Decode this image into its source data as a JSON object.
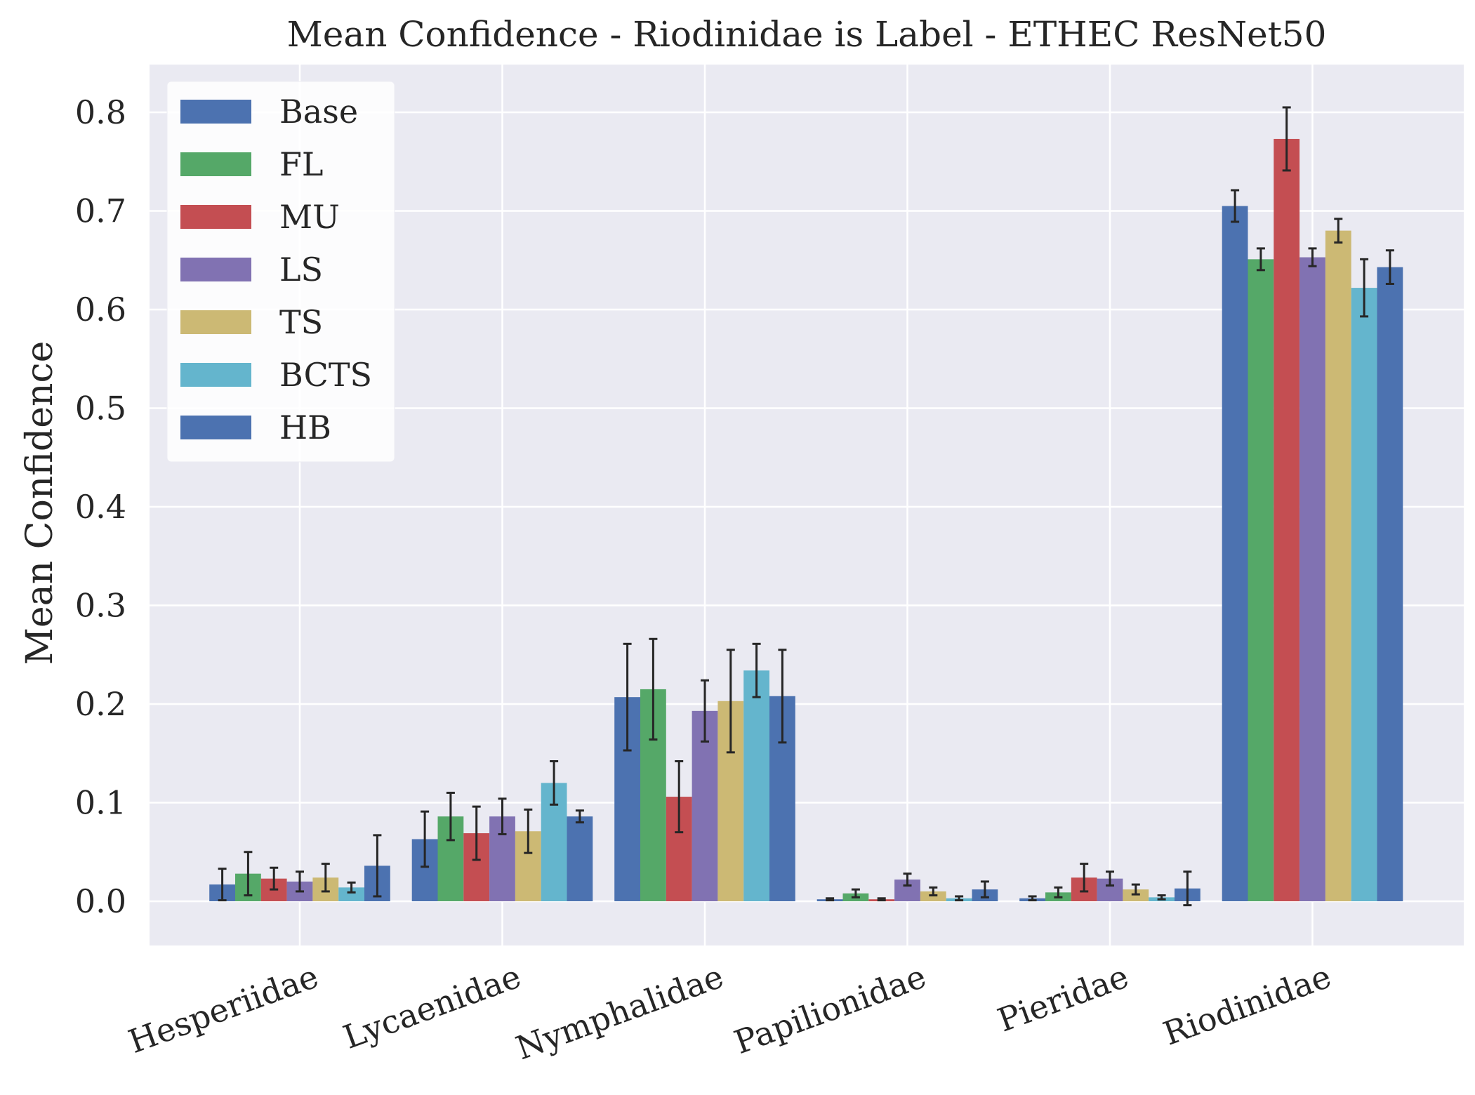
{
  "chart_data": {
    "type": "bar",
    "title": "Mean Confidence - Riodinidae is Label - ETHEC ResNet50",
    "xlabel": "",
    "ylabel": "Mean Confidence",
    "ylim": [
      -0.045,
      0.845
    ],
    "yticks": [
      "0.0",
      "0.1",
      "0.2",
      "0.3",
      "0.4",
      "0.5",
      "0.6",
      "0.7",
      "0.8"
    ],
    "grid": true,
    "legend_position": "upper-left",
    "categories": [
      "Hesperiidae",
      "Lycaenidae",
      "Nymphalidae",
      "Papilionidae",
      "Pieridae",
      "Riodinidae"
    ],
    "series": [
      {
        "name": "Base",
        "color": "#4c72b0",
        "values": [
          0.017,
          0.063,
          0.207,
          0.002,
          0.003,
          0.705
        ],
        "errors": [
          0.016,
          0.028,
          0.054,
          0.001,
          0.002,
          0.016
        ]
      },
      {
        "name": "FL",
        "color": "#55a868",
        "values": [
          0.028,
          0.086,
          0.215,
          0.008,
          0.009,
          0.651
        ],
        "errors": [
          0.022,
          0.024,
          0.051,
          0.004,
          0.005,
          0.011
        ]
      },
      {
        "name": "MU",
        "color": "#c44e52",
        "values": [
          0.023,
          0.069,
          0.106,
          0.002,
          0.024,
          0.773
        ],
        "errors": [
          0.011,
          0.027,
          0.036,
          0.001,
          0.014,
          0.032
        ]
      },
      {
        "name": "LS",
        "color": "#8172b2",
        "values": [
          0.02,
          0.086,
          0.193,
          0.022,
          0.023,
          0.653
        ],
        "errors": [
          0.01,
          0.018,
          0.031,
          0.006,
          0.007,
          0.009
        ]
      },
      {
        "name": "TS",
        "color": "#ccb974",
        "values": [
          0.024,
          0.071,
          0.203,
          0.01,
          0.012,
          0.68
        ],
        "errors": [
          0.014,
          0.022,
          0.052,
          0.004,
          0.005,
          0.012
        ]
      },
      {
        "name": "BCTS",
        "color": "#64b5cd",
        "values": [
          0.014,
          0.12,
          0.234,
          0.003,
          0.004,
          0.622
        ],
        "errors": [
          0.005,
          0.022,
          0.027,
          0.002,
          0.002,
          0.029
        ]
      },
      {
        "name": "HB",
        "color": "#4c72b0",
        "values": [
          0.036,
          0.086,
          0.208,
          0.012,
          0.013,
          0.643
        ],
        "errors": [
          0.031,
          0.006,
          0.047,
          0.008,
          0.017,
          0.017
        ]
      }
    ]
  }
}
